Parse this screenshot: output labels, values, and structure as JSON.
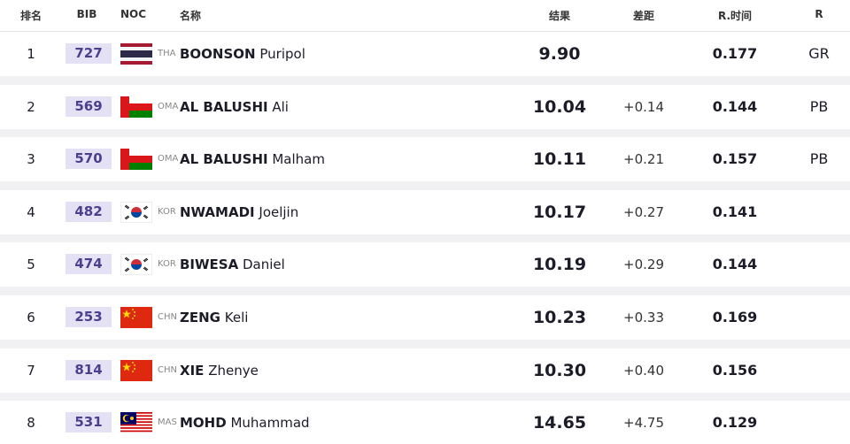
{
  "table": {
    "columns": [
      "排名",
      "BIB",
      "NOC",
      "名称",
      "结果",
      "差距",
      "R.时间",
      "R"
    ],
    "rows": [
      {
        "rank": "1",
        "bib": "727",
        "noc": "THA",
        "surname": "BOONSON",
        "given": "Puripol",
        "result": "9.90",
        "gap": null,
        "reaction": "0.177",
        "record": "GR"
      },
      {
        "rank": "2",
        "bib": "569",
        "noc": "OMA",
        "surname": "AL BALUSHI",
        "given": "Ali",
        "result": "10.04",
        "gap": "+0.14",
        "reaction": "0.144",
        "record": "PB"
      },
      {
        "rank": "3",
        "bib": "570",
        "noc": "OMA",
        "surname": "AL BALUSHI",
        "given": "Malham",
        "result": "10.11",
        "gap": "+0.21",
        "reaction": "0.157",
        "record": "PB"
      },
      {
        "rank": "4",
        "bib": "482",
        "noc": "KOR",
        "surname": "NWAMADI",
        "given": "Joeljin",
        "result": "10.17",
        "gap": "+0.27",
        "reaction": "0.141",
        "record": null
      },
      {
        "rank": "5",
        "bib": "474",
        "noc": "KOR",
        "surname": "BIWESA",
        "given": "Daniel",
        "result": "10.19",
        "gap": "+0.29",
        "reaction": "0.144",
        "record": null
      },
      {
        "rank": "6",
        "bib": "253",
        "noc": "CHN",
        "surname": "ZENG",
        "given": "Keli",
        "result": "10.23",
        "gap": "+0.33",
        "reaction": "0.169",
        "record": null
      },
      {
        "rank": "7",
        "bib": "814",
        "noc": "CHN",
        "surname": "XIE",
        "given": "Zhenye",
        "result": "10.30",
        "gap": "+0.40",
        "reaction": "0.156",
        "record": null
      },
      {
        "rank": "8",
        "bib": "531",
        "noc": "MAS",
        "surname": "MOHD",
        "given": "Muhammad",
        "result": "14.65",
        "gap": "+4.75",
        "reaction": "0.129",
        "record": null
      }
    ]
  }
}
